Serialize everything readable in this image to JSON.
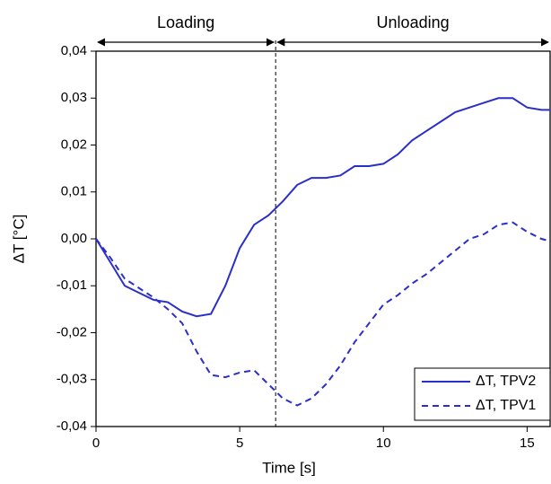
{
  "chart_data": {
    "type": "line",
    "x_label": "Time [s]",
    "y_label": "ΔT [°C]",
    "annotations": [
      "Loading",
      "Unloading"
    ],
    "vline_x": 6.25,
    "x": [
      0,
      0.5,
      1,
      1.5,
      2,
      2.5,
      3,
      3.5,
      4,
      4.5,
      5,
      5.5,
      6,
      6.5,
      7,
      7.5,
      8,
      8.5,
      9,
      9.5,
      10,
      10.5,
      11,
      11.5,
      12,
      12.5,
      13,
      13.5,
      14,
      14.5,
      15,
      15.5,
      15.8
    ],
    "series": [
      {
        "name": "ΔT, TPV2",
        "color": "#2b2fc9",
        "dash": false,
        "values": [
          0,
          -0.005,
          -0.01,
          -0.0115,
          -0.013,
          -0.0135,
          -0.0155,
          -0.0165,
          -0.016,
          -0.01,
          -0.002,
          0.003,
          0.005,
          0.008,
          0.0115,
          0.013,
          0.013,
          0.0135,
          0.0155,
          0.0155,
          0.016,
          0.018,
          0.021,
          0.023,
          0.025,
          0.027,
          0.028,
          0.029,
          0.03,
          0.03,
          0.028,
          0.0275,
          0.0275
        ]
      },
      {
        "name": "ΔT, TPV1",
        "color": "#2b2fc9",
        "dash": true,
        "values": [
          0,
          -0.004,
          -0.0085,
          -0.0105,
          -0.0125,
          -0.015,
          -0.018,
          -0.024,
          -0.029,
          -0.0295,
          -0.0285,
          -0.028,
          -0.031,
          -0.034,
          -0.0355,
          -0.034,
          -0.031,
          -0.027,
          -0.022,
          -0.018,
          -0.014,
          -0.012,
          -0.0095,
          -0.0075,
          -0.005,
          -0.0025,
          0,
          0.001,
          0.003,
          0.0035,
          0.0015,
          0,
          -0.0005
        ]
      }
    ],
    "xlim": [
      0,
      15.8
    ],
    "xticks": [
      0,
      5,
      10,
      15
    ],
    "ylim": [
      -0.04,
      0.04
    ],
    "yticks": [
      {
        "value": -0.04,
        "label": "-0,04"
      },
      {
        "value": -0.03,
        "label": "-0,03"
      },
      {
        "value": -0.02,
        "label": "-0,02"
      },
      {
        "value": -0.01,
        "label": "-0,01"
      },
      {
        "value": 0,
        "label": "0,00"
      },
      {
        "value": 0.01,
        "label": "0,01"
      },
      {
        "value": 0.02,
        "label": "0,02"
      },
      {
        "value": 0.03,
        "label": "0,03"
      },
      {
        "value": 0.04,
        "label": "0,04"
      }
    ],
    "legend": "lower-right"
  }
}
